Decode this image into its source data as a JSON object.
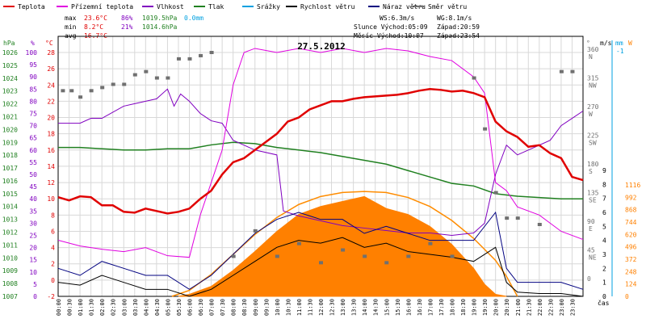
{
  "chart_data": {
    "type": "line",
    "title": "27.5.2012",
    "xlabel": "čas",
    "legend": [
      {
        "name": "Teplota",
        "color": "#e00000"
      },
      {
        "name": "Přízemní teplota",
        "color": "#e000e0"
      },
      {
        "name": "Vlhkost",
        "color": "#8000c0"
      },
      {
        "name": "Tlak",
        "color": "#208020"
      },
      {
        "name": "Srážky",
        "color": "#00a0e0"
      },
      {
        "name": "Rychlost větru",
        "color": "#000000"
      },
      {
        "name": "Náraz větru",
        "color": "#000080"
      },
      {
        "name": "Směr větru",
        "color": "#707070"
      }
    ],
    "stats": {
      "max_label": "max",
      "max_temp": "23.6°C",
      "max_hum": "86%",
      "max_press": "1019.5hPa",
      "max_rain": "0.0mm",
      "min_label": "min",
      "min_temp": "8.2°C",
      "min_hum": "21%",
      "min_press": "1014.6hPa",
      "avg_label": "avg",
      "avg_temp": "16.7°C",
      "ws": "WS:6.3m/s",
      "wg": "WG:8.1m/s",
      "sun": "Slunce Východ:05:09",
      "sun_set": "Západ:20:59",
      "moon": "Měsíc  Východ:10:07",
      "moon_set": "Západ:23:54"
    },
    "axes": {
      "hpa_unit": "hPa",
      "pct_unit": "%",
      "c_unit": "°C",
      "deg_unit": "°",
      "ms_unit": "m/s",
      "mm_unit": "mm",
      "w_unit": "W",
      "hpa_ticks": [
        "1026",
        "1025",
        "1024",
        "1023",
        "1022",
        "1021",
        "1020",
        "1019",
        "1018",
        "1017",
        "1016",
        "1015",
        "1014",
        "1013",
        "1012",
        "1011",
        "1010",
        "1009",
        "1008",
        "1007"
      ],
      "pct_ticks": [
        "100",
        "95",
        "90",
        "85",
        "80",
        "75",
        "70",
        "65",
        "60",
        "55",
        "50",
        "45",
        "40",
        "35",
        "30",
        "25",
        "20",
        "15",
        "10",
        "5",
        "0"
      ],
      "c_ticks": [
        "28",
        "26",
        "24",
        "22",
        "20",
        "18",
        "16",
        "14",
        "12",
        "10",
        "8",
        "6",
        "4",
        "2",
        "0",
        "-2"
      ],
      "dir_ticks": [
        {
          "deg": "360",
          "lab": "N"
        },
        {
          "deg": "315",
          "lab": "NW"
        },
        {
          "deg": "270",
          "lab": "W"
        },
        {
          "deg": "225",
          "lab": "SW"
        },
        {
          "deg": "180",
          "lab": "S"
        },
        {
          "deg": "135",
          "lab": "SE"
        },
        {
          "deg": "90",
          "lab": "E"
        },
        {
          "deg": "45",
          "lab": "NE"
        },
        {
          "deg": "0",
          "lab": ""
        }
      ],
      "ms_ticks": [
        "9",
        "8",
        "7",
        "6",
        "5",
        "4",
        "3",
        "2",
        "1",
        "0"
      ],
      "ms_top": "-1",
      "w_ticks": [
        "1116",
        "992",
        "868",
        "744",
        "620",
        "496",
        "372",
        "248",
        "124",
        "0"
      ],
      "time_ticks": [
        "00:00",
        "00:30",
        "01:00",
        "01:30",
        "02:00",
        "02:30",
        "03:00",
        "03:30",
        "04:00",
        "04:30",
        "05:00",
        "05:30",
        "06:00",
        "06:30",
        "07:00",
        "07:30",
        "08:00",
        "08:30",
        "09:00",
        "09:30",
        "10:00",
        "10:30",
        "11:00",
        "11:30",
        "12:00",
        "12:30",
        "13:00",
        "13:30",
        "14:00",
        "14:30",
        "15:00",
        "15:30",
        "16:00",
        "16:30",
        "17:00",
        "17:30",
        "18:00",
        "18:30",
        "19:00",
        "19:30",
        "20:00",
        "20:30",
        "21:00",
        "21:30",
        "22:00",
        "22:30",
        "23:00",
        "23:30"
      ]
    },
    "series_hours": {
      "temperature_c": [
        [
          0,
          10.2
        ],
        [
          0.5,
          9.8
        ],
        [
          1,
          10.3
        ],
        [
          1.5,
          10.2
        ],
        [
          2,
          9.2
        ],
        [
          2.5,
          9.2
        ],
        [
          3,
          8.4
        ],
        [
          3.5,
          8.3
        ],
        [
          4,
          8.8
        ],
        [
          4.5,
          8.5
        ],
        [
          5,
          8.2
        ],
        [
          5.5,
          8.4
        ],
        [
          6,
          8.8
        ],
        [
          6.5,
          10
        ],
        [
          7,
          11
        ],
        [
          7.5,
          13
        ],
        [
          8,
          14.5
        ],
        [
          8.5,
          15
        ],
        [
          9,
          16
        ],
        [
          9.5,
          17
        ],
        [
          10,
          18
        ],
        [
          10.5,
          19.5
        ],
        [
          11,
          20
        ],
        [
          11.5,
          21
        ],
        [
          12,
          21.5
        ],
        [
          12.5,
          22
        ],
        [
          13,
          22
        ],
        [
          13.5,
          22.3
        ],
        [
          14,
          22.5
        ],
        [
          14.5,
          22.6
        ],
        [
          15,
          22.7
        ],
        [
          15.5,
          22.8
        ],
        [
          16,
          23
        ],
        [
          16.5,
          23.3
        ],
        [
          17,
          23.5
        ],
        [
          17.5,
          23.4
        ],
        [
          18,
          23.2
        ],
        [
          18.5,
          23.3
        ],
        [
          19,
          23
        ],
        [
          19.5,
          22.5
        ],
        [
          20,
          19.5
        ],
        [
          20.5,
          18.3
        ],
        [
          21,
          17.6
        ],
        [
          21.5,
          16.4
        ],
        [
          22,
          16.6
        ],
        [
          22.5,
          15.6
        ],
        [
          23,
          15
        ],
        [
          23.5,
          12.7
        ],
        [
          24,
          12.3
        ]
      ],
      "ground_temp_c": [
        [
          0,
          4.9
        ],
        [
          1,
          4.2
        ],
        [
          2,
          3.8
        ],
        [
          3,
          3.5
        ],
        [
          4,
          4
        ],
        [
          5,
          3
        ],
        [
          6,
          2.8
        ],
        [
          6.5,
          8
        ],
        [
          7,
          12
        ],
        [
          7.5,
          16
        ],
        [
          8,
          24
        ],
        [
          8.5,
          28
        ],
        [
          9,
          28.5
        ],
        [
          10,
          28
        ],
        [
          11,
          28.5
        ],
        [
          12,
          28
        ],
        [
          13,
          28.5
        ],
        [
          14,
          28
        ],
        [
          15,
          28.5
        ],
        [
          16,
          28.2
        ],
        [
          17,
          27.5
        ],
        [
          18,
          27
        ],
        [
          19,
          25
        ],
        [
          19.5,
          23
        ],
        [
          20,
          12
        ],
        [
          20.5,
          11
        ],
        [
          21,
          9
        ],
        [
          22,
          8
        ],
        [
          23,
          6
        ],
        [
          24,
          5
        ]
      ],
      "humidity_pct": [
        [
          0,
          71
        ],
        [
          1,
          71
        ],
        [
          1.5,
          73
        ],
        [
          2,
          73
        ],
        [
          3,
          78
        ],
        [
          3.5,
          79
        ],
        [
          4,
          80
        ],
        [
          4.5,
          81
        ],
        [
          5,
          85
        ],
        [
          5.3,
          78
        ],
        [
          5.6,
          83
        ],
        [
          6,
          80
        ],
        [
          6.5,
          75
        ],
        [
          7,
          72
        ],
        [
          7.5,
          71
        ],
        [
          8,
          64
        ],
        [
          9,
          60
        ],
        [
          10,
          58
        ],
        [
          10.3,
          35
        ],
        [
          11,
          33
        ],
        [
          12,
          31
        ],
        [
          13,
          29
        ],
        [
          14,
          28
        ],
        [
          15,
          27
        ],
        [
          16,
          26
        ],
        [
          17,
          26
        ],
        [
          18,
          25
        ],
        [
          19,
          26
        ],
        [
          19.5,
          30
        ],
        [
          20,
          50
        ],
        [
          20.5,
          62
        ],
        [
          21,
          58
        ],
        [
          21.5,
          60
        ],
        [
          22,
          62
        ],
        [
          22.5,
          64
        ],
        [
          23,
          70
        ],
        [
          23.5,
          73
        ],
        [
          24,
          76
        ]
      ],
      "pressure_hpa": [
        [
          0,
          1018.6
        ],
        [
          1,
          1018.6
        ],
        [
          2,
          1018.5
        ],
        [
          3,
          1018.4
        ],
        [
          4,
          1018.4
        ],
        [
          5,
          1018.5
        ],
        [
          6,
          1018.5
        ],
        [
          7,
          1018.8
        ],
        [
          8,
          1019
        ],
        [
          9,
          1018.9
        ],
        [
          10,
          1018.6
        ],
        [
          11,
          1018.4
        ],
        [
          12,
          1018.2
        ],
        [
          13,
          1017.9
        ],
        [
          14,
          1017.6
        ],
        [
          15,
          1017.3
        ],
        [
          16,
          1016.8
        ],
        [
          17,
          1016.3
        ],
        [
          18,
          1015.8
        ],
        [
          19,
          1015.6
        ],
        [
          20,
          1015
        ],
        [
          21,
          1014.8
        ],
        [
          22,
          1014.7
        ],
        [
          23,
          1014.6
        ],
        [
          24,
          1014.6
        ]
      ],
      "wind_speed_ms": [
        [
          0,
          1
        ],
        [
          1,
          0.8
        ],
        [
          2,
          1.5
        ],
        [
          3,
          1
        ],
        [
          4,
          0.5
        ],
        [
          5,
          0.5
        ],
        [
          6,
          0
        ],
        [
          7,
          0.5
        ],
        [
          8,
          1.5
        ],
        [
          9,
          2.5
        ],
        [
          10,
          3.5
        ],
        [
          11,
          4
        ],
        [
          12,
          3.8
        ],
        [
          13,
          4.2
        ],
        [
          14,
          3.5
        ],
        [
          15,
          3.8
        ],
        [
          16,
          3.2
        ],
        [
          17,
          3
        ],
        [
          18,
          2.8
        ],
        [
          19,
          2.5
        ],
        [
          20,
          3.5
        ],
        [
          20.5,
          1
        ],
        [
          21,
          0.3
        ],
        [
          22,
          0.2
        ],
        [
          23,
          0.2
        ],
        [
          24,
          0
        ]
      ],
      "wind_gust_ms": [
        [
          0,
          2
        ],
        [
          1,
          1.5
        ],
        [
          2,
          2.5
        ],
        [
          3,
          2
        ],
        [
          4,
          1.5
        ],
        [
          5,
          1.5
        ],
        [
          6,
          0.5
        ],
        [
          7,
          1.5
        ],
        [
          8,
          3
        ],
        [
          9,
          4.5
        ],
        [
          10,
          5.5
        ],
        [
          11,
          6
        ],
        [
          12,
          5.5
        ],
        [
          13,
          5.5
        ],
        [
          14,
          4.5
        ],
        [
          15,
          5
        ],
        [
          16,
          4.5
        ],
        [
          17,
          4
        ],
        [
          18,
          4
        ],
        [
          19,
          4
        ],
        [
          20,
          6
        ],
        [
          20.5,
          2
        ],
        [
          21,
          1
        ],
        [
          22,
          1
        ],
        [
          23,
          1
        ],
        [
          24,
          0.5
        ]
      ],
      "solar_w": [
        [
          5.5,
          0
        ],
        [
          6,
          20
        ],
        [
          7,
          100
        ],
        [
          8,
          260
        ],
        [
          9,
          450
        ],
        [
          10,
          650
        ],
        [
          11,
          820
        ],
        [
          12,
          900
        ],
        [
          13,
          950
        ],
        [
          14,
          1000
        ],
        [
          15,
          880
        ],
        [
          16,
          820
        ],
        [
          17,
          700
        ],
        [
          18,
          520
        ],
        [
          19,
          280
        ],
        [
          19.5,
          120
        ],
        [
          20,
          20
        ],
        [
          20.5,
          0
        ]
      ],
      "solar_theory_w": [
        [
          5.2,
          0
        ],
        [
          6,
          60
        ],
        [
          7,
          220
        ],
        [
          8,
          420
        ],
        [
          9,
          620
        ],
        [
          10,
          790
        ],
        [
          11,
          920
        ],
        [
          12,
          1000
        ],
        [
          13,
          1040
        ],
        [
          14,
          1050
        ],
        [
          15,
          1040
        ],
        [
          16,
          990
        ],
        [
          17,
          900
        ],
        [
          18,
          760
        ],
        [
          19,
          580
        ],
        [
          20,
          360
        ],
        [
          20.5,
          200
        ],
        [
          21,
          0
        ]
      ],
      "wind_dir_deg": [
        [
          0.2,
          300
        ],
        [
          0.6,
          300
        ],
        [
          1,
          290
        ],
        [
          1.5,
          300
        ],
        [
          2,
          305
        ],
        [
          2.5,
          310
        ],
        [
          3,
          310
        ],
        [
          3.5,
          325
        ],
        [
          4,
          330
        ],
        [
          4.5,
          320
        ],
        [
          5,
          320
        ],
        [
          5.5,
          350
        ],
        [
          6,
          350
        ],
        [
          6.5,
          355
        ],
        [
          7,
          360
        ],
        [
          8,
          40
        ],
        [
          9,
          80
        ],
        [
          10,
          40
        ],
        [
          11,
          60
        ],
        [
          12,
          30
        ],
        [
          13,
          50
        ],
        [
          14,
          40
        ],
        [
          15,
          30
        ],
        [
          16,
          40
        ],
        [
          17,
          60
        ],
        [
          18,
          40
        ],
        [
          19,
          320
        ],
        [
          19.5,
          240
        ],
        [
          20,
          140
        ],
        [
          20.5,
          100
        ],
        [
          21,
          100
        ],
        [
          22,
          90
        ],
        [
          23,
          330
        ],
        [
          23.5,
          330
        ]
      ]
    }
  }
}
